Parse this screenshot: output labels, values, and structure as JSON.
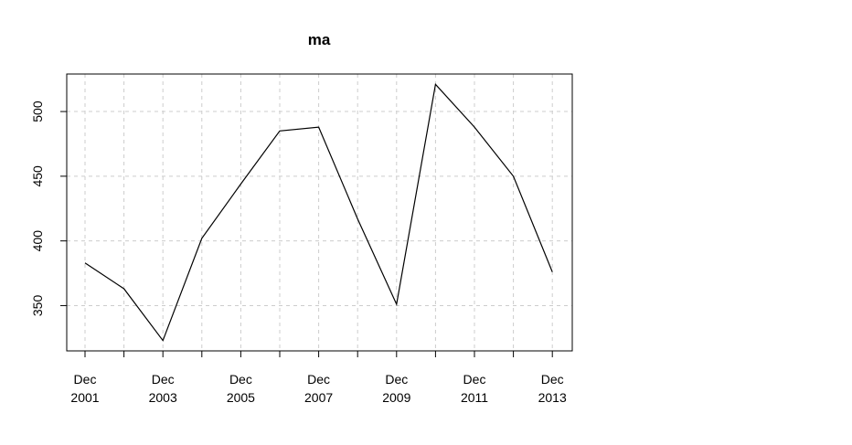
{
  "chart_data": {
    "type": "line",
    "title": "ma",
    "xlabel": "",
    "ylabel": "",
    "x": [
      "Dec 2001",
      "Dec 2002",
      "Dec 2003",
      "Dec 2004",
      "Dec 2005",
      "Dec 2006",
      "Dec 2007",
      "Dec 2008",
      "Dec 2009",
      "Dec 2010",
      "Dec 2011",
      "Dec 2012",
      "Dec 2013"
    ],
    "values": [
      383,
      363,
      323,
      402,
      444,
      485,
      488,
      417,
      351,
      521,
      488,
      450,
      376
    ],
    "ylim": [
      315,
      529
    ],
    "yticks": [
      350,
      400,
      450,
      500
    ],
    "x_tick_labels": [
      {
        "index": 0,
        "line1": "Dec",
        "line2": "2001"
      },
      {
        "index": 2,
        "line1": "Dec",
        "line2": "2003"
      },
      {
        "index": 4,
        "line1": "Dec",
        "line2": "2005"
      },
      {
        "index": 6,
        "line1": "Dec",
        "line2": "2007"
      },
      {
        "index": 8,
        "line1": "Dec",
        "line2": "2009"
      },
      {
        "index": 10,
        "line1": "Dec",
        "line2": "2011"
      },
      {
        "index": 12,
        "line1": "Dec",
        "line2": "2013"
      }
    ],
    "grid": true,
    "line_color": "#000000",
    "grid_color": "#cccccc"
  }
}
